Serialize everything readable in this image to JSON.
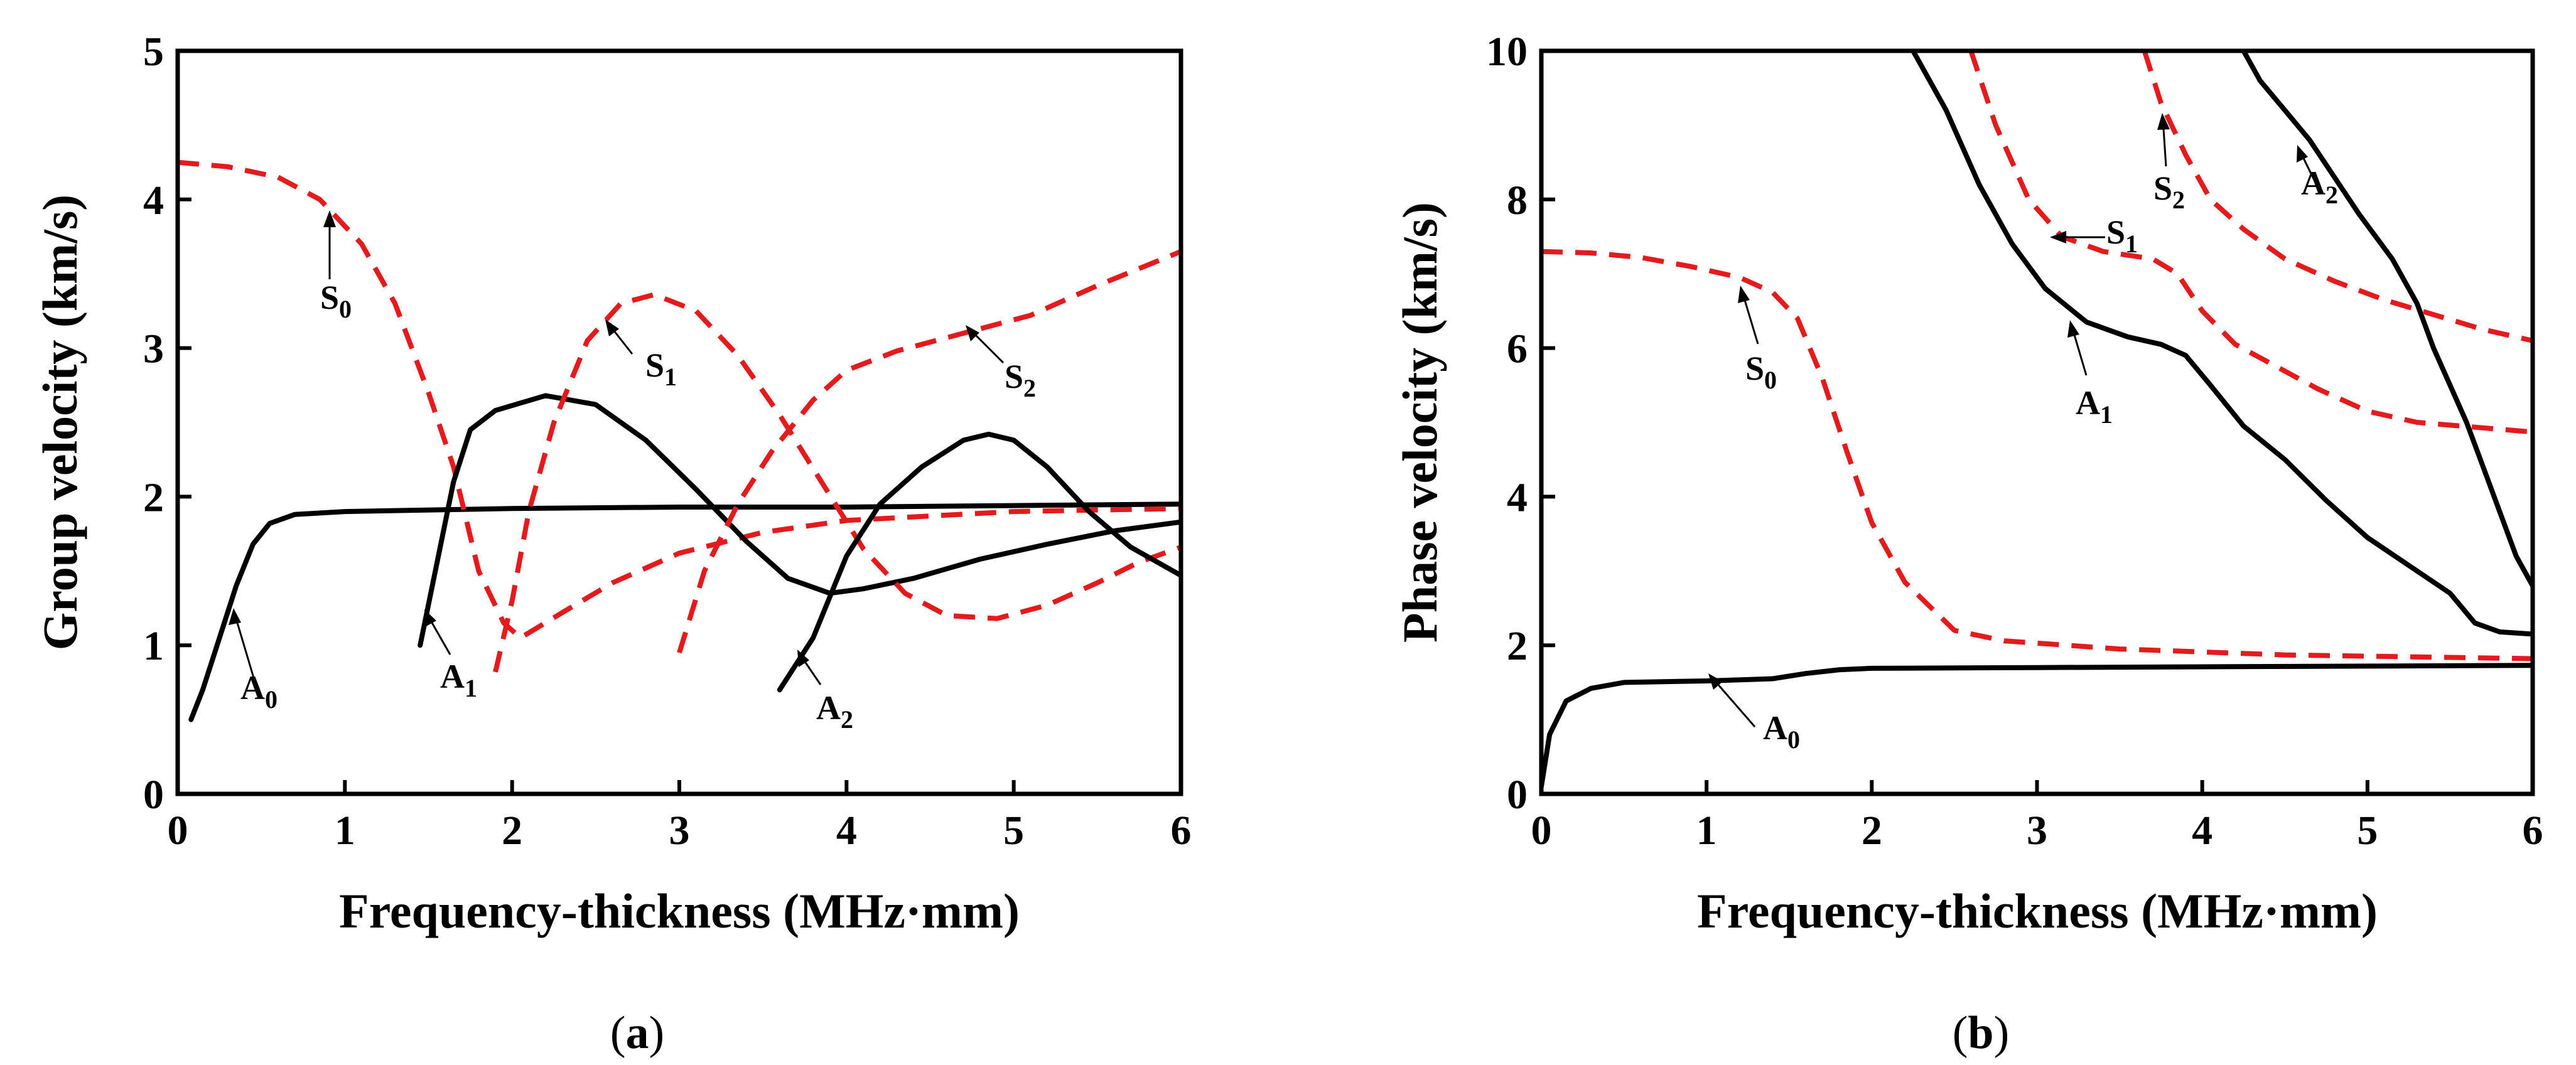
{
  "chart_data": [
    {
      "type": "line",
      "panel": "a",
      "panel_label_open": "(",
      "panel_label_letter": "a",
      "panel_label_close": ")",
      "xlabel": "Frequency-thickness (MHz·mm)",
      "ylabel": "Group velocity (km/s)",
      "xlim": [
        0,
        6
      ],
      "ylim": [
        0,
        5
      ],
      "xticks": [
        0,
        1,
        2,
        3,
        4,
        5,
        6
      ],
      "yticks": [
        0,
        1,
        2,
        3,
        4,
        5
      ],
      "series": [
        {
          "name": "A0",
          "style": "solid",
          "color": "#000000",
          "points": [
            [
              0.08,
              0.5
            ],
            [
              0.15,
              0.7
            ],
            [
              0.25,
              1.05
            ],
            [
              0.35,
              1.4
            ],
            [
              0.45,
              1.68
            ],
            [
              0.55,
              1.82
            ],
            [
              0.7,
              1.88
            ],
            [
              1.0,
              1.9
            ],
            [
              2.0,
              1.92
            ],
            [
              3.0,
              1.93
            ],
            [
              4.0,
              1.93
            ],
            [
              5.0,
              1.94
            ],
            [
              6.0,
              1.95
            ]
          ]
        },
        {
          "name": "S0",
          "style": "dashed",
          "color": "#e41a1c",
          "points": [
            [
              0,
              4.25
            ],
            [
              0.3,
              4.22
            ],
            [
              0.6,
              4.15
            ],
            [
              0.85,
              4.0
            ],
            [
              1.1,
              3.7
            ],
            [
              1.3,
              3.3
            ],
            [
              1.5,
              2.7
            ],
            [
              1.65,
              2.2
            ],
            [
              1.8,
              1.5
            ],
            [
              1.95,
              1.15
            ],
            [
              2.05,
              1.05
            ],
            [
              2.3,
              1.22
            ],
            [
              2.6,
              1.42
            ],
            [
              3.0,
              1.62
            ],
            [
              3.5,
              1.76
            ],
            [
              4.0,
              1.84
            ],
            [
              5.0,
              1.9
            ],
            [
              6.0,
              1.92
            ]
          ]
        },
        {
          "name": "A1",
          "style": "solid",
          "color": "#000000",
          "points": [
            [
              1.45,
              1.0
            ],
            [
              1.55,
              1.55
            ],
            [
              1.65,
              2.1
            ],
            [
              1.75,
              2.45
            ],
            [
              1.9,
              2.58
            ],
            [
              2.2,
              2.68
            ],
            [
              2.5,
              2.62
            ],
            [
              2.8,
              2.38
            ],
            [
              3.1,
              2.05
            ],
            [
              3.4,
              1.7
            ],
            [
              3.65,
              1.45
            ],
            [
              3.9,
              1.35
            ],
            [
              4.1,
              1.38
            ],
            [
              4.4,
              1.45
            ],
            [
              4.8,
              1.58
            ],
            [
              5.2,
              1.68
            ],
            [
              5.6,
              1.77
            ],
            [
              6.0,
              1.83
            ]
          ]
        },
        {
          "name": "S1",
          "style": "dashed",
          "color": "#e41a1c",
          "points": [
            [
              1.9,
              0.82
            ],
            [
              2.0,
              1.3
            ],
            [
              2.1,
              1.9
            ],
            [
              2.25,
              2.5
            ],
            [
              2.45,
              3.05
            ],
            [
              2.65,
              3.3
            ],
            [
              2.85,
              3.36
            ],
            [
              3.1,
              3.25
            ],
            [
              3.35,
              2.95
            ],
            [
              3.6,
              2.55
            ],
            [
              3.85,
              2.1
            ],
            [
              4.1,
              1.65
            ],
            [
              4.35,
              1.35
            ],
            [
              4.6,
              1.2
            ],
            [
              4.9,
              1.18
            ],
            [
              5.2,
              1.27
            ],
            [
              5.5,
              1.42
            ],
            [
              5.75,
              1.56
            ],
            [
              6.0,
              1.66
            ]
          ]
        },
        {
          "name": "A2",
          "style": "solid",
          "color": "#000000",
          "points": [
            [
              3.6,
              0.7
            ],
            [
              3.8,
              1.05
            ],
            [
              4.0,
              1.6
            ],
            [
              4.2,
              1.95
            ],
            [
              4.45,
              2.2
            ],
            [
              4.7,
              2.38
            ],
            [
              4.85,
              2.42
            ],
            [
              5.0,
              2.38
            ],
            [
              5.2,
              2.2
            ],
            [
              5.45,
              1.9
            ],
            [
              5.7,
              1.66
            ],
            [
              6.0,
              1.47
            ]
          ]
        },
        {
          "name": "S2",
          "style": "dashed",
          "color": "#e41a1c",
          "points": [
            [
              3.0,
              0.95
            ],
            [
              3.15,
              1.5
            ],
            [
              3.35,
              1.95
            ],
            [
              3.55,
              2.3
            ],
            [
              3.8,
              2.65
            ],
            [
              4.0,
              2.85
            ],
            [
              4.3,
              2.98
            ],
            [
              4.7,
              3.1
            ],
            [
              5.1,
              3.22
            ],
            [
              5.5,
              3.42
            ],
            [
              6.0,
              3.65
            ]
          ]
        }
      ],
      "annotations": [
        {
          "base": "A",
          "sub": "0"
        },
        {
          "base": "S",
          "sub": "0"
        },
        {
          "base": "A",
          "sub": "1"
        },
        {
          "base": "S",
          "sub": "1"
        },
        {
          "base": "A",
          "sub": "2"
        },
        {
          "base": "S",
          "sub": "2"
        }
      ]
    },
    {
      "type": "line",
      "panel": "b",
      "panel_label_open": "(",
      "panel_label_letter": "b",
      "panel_label_close": ")",
      "xlabel": "Frequency-thickness (MHz·mm)",
      "ylabel": "Phase velocity (km/s)",
      "xlim": [
        0,
        6
      ],
      "ylim": [
        0,
        10
      ],
      "xticks": [
        0,
        1,
        2,
        3,
        4,
        5,
        6
      ],
      "yticks": [
        0,
        2,
        4,
        6,
        8,
        10
      ],
      "series": [
        {
          "name": "A0",
          "style": "solid",
          "color": "#000000",
          "points": [
            [
              0.0,
              0.1
            ],
            [
              0.05,
              0.8
            ],
            [
              0.15,
              1.25
            ],
            [
              0.3,
              1.42
            ],
            [
              0.5,
              1.5
            ],
            [
              1.0,
              1.52
            ],
            [
              1.4,
              1.55
            ],
            [
              1.6,
              1.62
            ],
            [
              1.8,
              1.67
            ],
            [
              2.0,
              1.69
            ],
            [
              3.0,
              1.7
            ],
            [
              4.0,
              1.71
            ],
            [
              5.0,
              1.72
            ],
            [
              6.0,
              1.73
            ]
          ]
        },
        {
          "name": "S0",
          "style": "dashed",
          "color": "#e41a1c",
          "points": [
            [
              0,
              7.3
            ],
            [
              0.3,
              7.28
            ],
            [
              0.6,
              7.22
            ],
            [
              0.9,
              7.1
            ],
            [
              1.2,
              6.95
            ],
            [
              1.4,
              6.75
            ],
            [
              1.55,
              6.4
            ],
            [
              1.7,
              5.6
            ],
            [
              1.85,
              4.6
            ],
            [
              2.0,
              3.65
            ],
            [
              2.2,
              2.85
            ],
            [
              2.5,
              2.2
            ],
            [
              2.8,
              2.06
            ],
            [
              3.5,
              1.95
            ],
            [
              4.5,
              1.87
            ],
            [
              6.0,
              1.82
            ]
          ]
        },
        {
          "name": "A1",
          "style": "solid",
          "color": "#000000",
          "points": [
            [
              2.25,
              10.0
            ],
            [
              2.45,
              9.2
            ],
            [
              2.65,
              8.2
            ],
            [
              2.85,
              7.4
            ],
            [
              3.05,
              6.8
            ],
            [
              3.3,
              6.35
            ],
            [
              3.55,
              6.15
            ],
            [
              3.75,
              6.05
            ],
            [
              3.9,
              5.9
            ],
            [
              4.05,
              5.5
            ],
            [
              4.25,
              4.95
            ],
            [
              4.5,
              4.5
            ],
            [
              4.75,
              3.95
            ],
            [
              5.0,
              3.45
            ],
            [
              5.3,
              3.0
            ],
            [
              5.5,
              2.7
            ],
            [
              5.65,
              2.3
            ],
            [
              5.8,
              2.18
            ],
            [
              6.0,
              2.15
            ]
          ]
        },
        {
          "name": "S1",
          "style": "dashed",
          "color": "#e41a1c",
          "points": [
            [
              2.6,
              10.0
            ],
            [
              2.75,
              9.0
            ],
            [
              2.95,
              8.0
            ],
            [
              3.15,
              7.5
            ],
            [
              3.4,
              7.3
            ],
            [
              3.7,
              7.2
            ],
            [
              3.85,
              7.0
            ],
            [
              4.0,
              6.5
            ],
            [
              4.2,
              6.05
            ],
            [
              4.45,
              5.75
            ],
            [
              4.7,
              5.45
            ],
            [
              5.0,
              5.15
            ],
            [
              5.3,
              5.0
            ],
            [
              6.0,
              4.87
            ]
          ]
        },
        {
          "name": "A2",
          "style": "solid",
          "color": "#000000",
          "points": [
            [
              4.25,
              10.0
            ],
            [
              4.35,
              9.6
            ],
            [
              4.5,
              9.2
            ],
            [
              4.65,
              8.8
            ],
            [
              4.8,
              8.3
            ],
            [
              4.95,
              7.8
            ],
            [
              5.15,
              7.2
            ],
            [
              5.3,
              6.6
            ],
            [
              5.4,
              6.0
            ],
            [
              5.5,
              5.5
            ],
            [
              5.6,
              5.0
            ],
            [
              5.7,
              4.4
            ],
            [
              5.8,
              3.8
            ],
            [
              5.9,
              3.2
            ],
            [
              6.0,
              2.8
            ]
          ]
        },
        {
          "name": "S2",
          "style": "dashed",
          "color": "#e41a1c",
          "points": [
            [
              3.65,
              10.0
            ],
            [
              3.75,
              9.3
            ],
            [
              3.9,
              8.6
            ],
            [
              4.05,
              8.0
            ],
            [
              4.25,
              7.6
            ],
            [
              4.5,
              7.2
            ],
            [
              4.8,
              6.9
            ],
            [
              5.1,
              6.65
            ],
            [
              5.4,
              6.45
            ],
            [
              5.7,
              6.25
            ],
            [
              6.0,
              6.1
            ]
          ]
        }
      ],
      "annotations": [
        {
          "base": "A",
          "sub": "0"
        },
        {
          "base": "S",
          "sub": "0"
        },
        {
          "base": "A",
          "sub": "1"
        },
        {
          "base": "S",
          "sub": "1"
        },
        {
          "base": "A",
          "sub": "2"
        },
        {
          "base": "S",
          "sub": "2"
        }
      ]
    }
  ]
}
